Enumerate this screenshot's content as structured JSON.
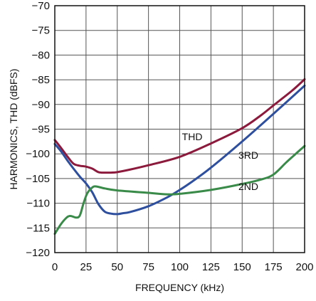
{
  "chart_data": {
    "type": "line",
    "title": "",
    "xlabel": "FREQUENCY (kHz)",
    "ylabel": "HARMONICS, THD (dBFS)",
    "xlim": [
      0,
      200
    ],
    "ylim": [
      -120,
      -70
    ],
    "x_ticks": [
      "0",
      "25",
      "50",
      "75",
      "100",
      "125",
      "150",
      "175",
      "200"
    ],
    "y_ticks": [
      "−120",
      "−115",
      "−110",
      "−105",
      "−100",
      "−95",
      "−90",
      "−85",
      "−80",
      "−75",
      "−70"
    ],
    "grid": true,
    "series": [
      {
        "name": "THD",
        "color": "#8b1a3c",
        "points": [
          [
            0,
            -97.2
          ],
          [
            5,
            -98.8
          ],
          [
            10,
            -100.5
          ],
          [
            15,
            -102.0
          ],
          [
            20,
            -102.4
          ],
          [
            25,
            -102.6
          ],
          [
            30,
            -103.0
          ],
          [
            35,
            -103.7
          ],
          [
            40,
            -103.8
          ],
          [
            45,
            -103.8
          ],
          [
            50,
            -103.7
          ],
          [
            60,
            -103.2
          ],
          [
            75,
            -102.3
          ],
          [
            100,
            -100.6
          ],
          [
            125,
            -97.9
          ],
          [
            150,
            -94.8
          ],
          [
            165,
            -92.2
          ],
          [
            175,
            -90.2
          ],
          [
            190,
            -87.2
          ],
          [
            200,
            -84.9
          ]
        ]
      },
      {
        "name": "3RD",
        "color": "#2e4f9e",
        "points": [
          [
            0,
            -98.0
          ],
          [
            5,
            -99.5
          ],
          [
            10,
            -101.3
          ],
          [
            15,
            -103.0
          ],
          [
            20,
            -104.6
          ],
          [
            25,
            -106.0
          ],
          [
            30,
            -107.8
          ],
          [
            35,
            -110.2
          ],
          [
            40,
            -111.7
          ],
          [
            45,
            -112.1
          ],
          [
            50,
            -112.2
          ],
          [
            55,
            -112.0
          ],
          [
            60,
            -111.8
          ],
          [
            75,
            -110.6
          ],
          [
            90,
            -108.8
          ],
          [
            100,
            -107.3
          ],
          [
            110,
            -105.6
          ],
          [
            125,
            -102.8
          ],
          [
            150,
            -97.5
          ],
          [
            175,
            -91.9
          ],
          [
            200,
            -86.2
          ]
        ]
      },
      {
        "name": "2ND",
        "color": "#3a8a4a",
        "points": [
          [
            0,
            -116.2
          ],
          [
            5,
            -114.2
          ],
          [
            10,
            -112.8
          ],
          [
            13,
            -112.6
          ],
          [
            17,
            -112.9
          ],
          [
            20,
            -112.5
          ],
          [
            23,
            -110.0
          ],
          [
            26,
            -108.0
          ],
          [
            30,
            -106.8
          ],
          [
            33,
            -106.6
          ],
          [
            40,
            -107.0
          ],
          [
            50,
            -107.4
          ],
          [
            75,
            -107.9
          ],
          [
            90,
            -108.2
          ],
          [
            100,
            -108.1
          ],
          [
            125,
            -107.3
          ],
          [
            150,
            -106.1
          ],
          [
            165,
            -105.2
          ],
          [
            175,
            -104.2
          ],
          [
            185,
            -101.8
          ],
          [
            192,
            -100.2
          ],
          [
            200,
            -98.4
          ]
        ]
      }
    ],
    "annotations": [
      {
        "text": "THD",
        "x": 110,
        "y": -97.2
      },
      {
        "text": "3RD",
        "x": 155,
        "y": -101.0
      },
      {
        "text": "2ND",
        "x": 155,
        "y": -107.3
      }
    ]
  }
}
